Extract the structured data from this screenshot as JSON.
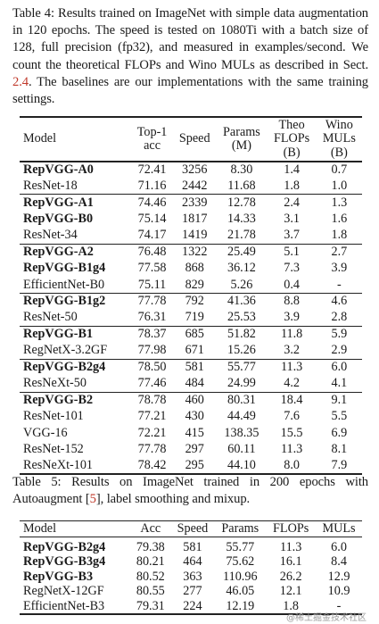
{
  "table4": {
    "caption_pre": "Table 4: Results trained on ImageNet with simple data augmentation in 120 epochs. The speed is tested on 1080Ti with a batch size of 128, full precision (fp32), and measured in examples/second. We count the theoretical FLOPs and Wino MULs as described in Sect.",
    "caption_ref": "2.4",
    "caption_post": ". The baselines are our implementations with the same training settings.",
    "headers": [
      "Model",
      "Top-1\nacc",
      "Speed",
      "Params\n(M)",
      "Theo\nFLOPs\n(B)",
      "Wino\nMULs\n(B)"
    ],
    "groups": [
      [
        [
          "RepVGG-A0",
          "72.41",
          "3256",
          "8.30",
          "1.4",
          "0.7",
          true
        ],
        [
          "ResNet-18",
          "71.16",
          "2442",
          "11.68",
          "1.8",
          "1.0",
          false
        ]
      ],
      [
        [
          "RepVGG-A1",
          "74.46",
          "2339",
          "12.78",
          "2.4",
          "1.3",
          true
        ],
        [
          "RepVGG-B0",
          "75.14",
          "1817",
          "14.33",
          "3.1",
          "1.6",
          true
        ],
        [
          "ResNet-34",
          "74.17",
          "1419",
          "21.78",
          "3.7",
          "1.8",
          false
        ]
      ],
      [
        [
          "RepVGG-A2",
          "76.48",
          "1322",
          "25.49",
          "5.1",
          "2.7",
          true
        ],
        [
          "RepVGG-B1g4",
          "77.58",
          "868",
          "36.12",
          "7.3",
          "3.9",
          true
        ],
        [
          "EfficientNet-B0",
          "75.11",
          "829",
          "5.26",
          "0.4",
          "-",
          false
        ]
      ],
      [
        [
          "RepVGG-B1g2",
          "77.78",
          "792",
          "41.36",
          "8.8",
          "4.6",
          true
        ],
        [
          "ResNet-50",
          "76.31",
          "719",
          "25.53",
          "3.9",
          "2.8",
          false
        ]
      ],
      [
        [
          "RepVGG-B1",
          "78.37",
          "685",
          "51.82",
          "11.8",
          "5.9",
          true
        ],
        [
          "RegNetX-3.2GF",
          "77.98",
          "671",
          "15.26",
          "3.2",
          "2.9",
          false
        ]
      ],
      [
        [
          "RepVGG-B2g4",
          "78.50",
          "581",
          "55.77",
          "11.3",
          "6.0",
          true
        ],
        [
          "ResNeXt-50",
          "77.46",
          "484",
          "24.99",
          "4.2",
          "4.1",
          false
        ]
      ],
      [
        [
          "RepVGG-B2",
          "78.78",
          "460",
          "80.31",
          "18.4",
          "9.1",
          true
        ],
        [
          "ResNet-101",
          "77.21",
          "430",
          "44.49",
          "7.6",
          "5.5",
          false
        ],
        [
          "VGG-16",
          "72.21",
          "415",
          "138.35",
          "15.5",
          "6.9",
          false
        ],
        [
          "ResNet-152",
          "77.78",
          "297",
          "60.11",
          "11.3",
          "8.1",
          false
        ],
        [
          "ResNeXt-101",
          "78.42",
          "295",
          "44.10",
          "8.0",
          "7.9",
          false
        ]
      ]
    ]
  },
  "table5": {
    "caption_pre": "Table 5: Results on ImageNet trained in 200 epochs with Autoaugment [",
    "caption_ref": "5",
    "caption_post": "], label smoothing and mixup.",
    "headers": [
      "Model",
      "Acc",
      "Speed",
      "Params",
      "FLOPs",
      "MULs"
    ],
    "rows": [
      [
        "RepVGG-B2g4",
        "79.38",
        "581",
        "55.77",
        "11.3",
        "6.0",
        true
      ],
      [
        "RepVGG-B3g4",
        "80.21",
        "464",
        "75.62",
        "16.1",
        "8.4",
        true
      ],
      [
        "RepVGG-B3",
        "80.52",
        "363",
        "110.96",
        "26.2",
        "12.9",
        true
      ],
      [
        "RegNetX-12GF",
        "80.55",
        "277",
        "46.05",
        "12.1",
        "10.9",
        false
      ],
      [
        "EfficientNet-B3",
        "79.31",
        "224",
        "12.19",
        "1.8",
        "-",
        false
      ]
    ]
  },
  "watermark": "@稀土掘金技术社区"
}
